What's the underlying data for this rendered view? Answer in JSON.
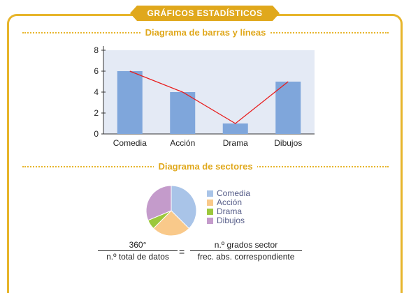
{
  "header": {
    "title": "GRÁFICOS ESTADÍSTICOS"
  },
  "sections": {
    "bar_line": {
      "title": "Diagrama de barras y líneas"
    },
    "pie": {
      "title": "Diagrama de sectores"
    }
  },
  "chart_data": [
    {
      "type": "bar",
      "categories": [
        "Comedia",
        "Acción",
        "Drama",
        "Dibujos"
      ],
      "values": [
        6,
        4,
        1,
        5
      ],
      "line_overlay": [
        6,
        4,
        1,
        5
      ],
      "ylim": [
        0,
        8
      ],
      "yticks": [
        "0",
        "2",
        "4",
        "6",
        "8"
      ],
      "bar_color": "#7fa6db",
      "line_color": "#e81e1e",
      "grid": false
    },
    {
      "type": "pie",
      "categories": [
        "Comedia",
        "Acción",
        "Drama",
        "Dibujos"
      ],
      "values": [
        6,
        4,
        1,
        5
      ],
      "colors": [
        "#a9c4e8",
        "#f9c98a",
        "#9cc83c",
        "#c49bcb"
      ],
      "legend_position": "right"
    }
  ],
  "formula": {
    "left_numerator": "360°",
    "left_denominator": "n.º total de datos",
    "equals": "=",
    "right_numerator": "n.º grados sector",
    "right_denominator": "frec. abs. correspondiente"
  }
}
